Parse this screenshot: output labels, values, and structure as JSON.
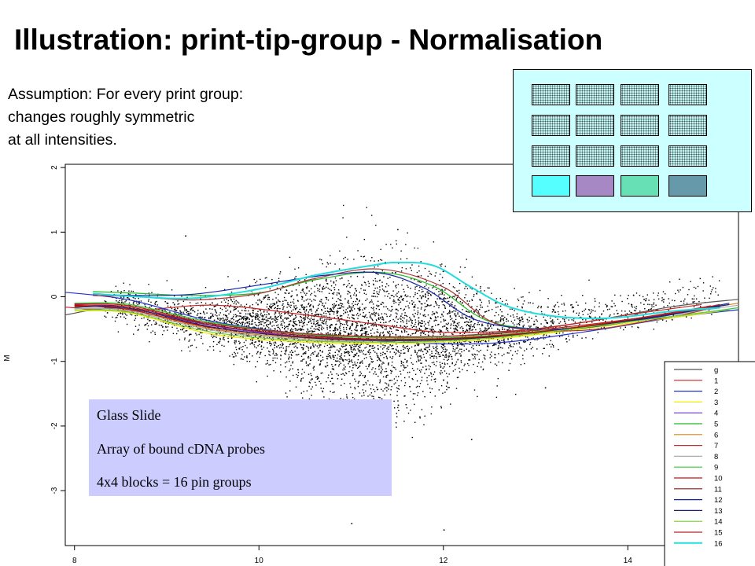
{
  "slide": {
    "title": "Illustration: print-tip-group - Normalisation",
    "assumption_lines": [
      "Assumption: For every print group:",
      "changes roughly symmetric",
      "at all intensities."
    ]
  },
  "glass_slide_box": {
    "lines": [
      "Glass Slide",
      "Array of bound cDNA probes",
      "4x4 blocks = 16 pin groups"
    ]
  },
  "array_diagram": {
    "rows": 4,
    "cols": 4,
    "dotted_fill": "#c6f2f2",
    "background": "#ccffff",
    "bottom_row_colors": [
      "#55ffff",
      "#a688c4",
      "#66e0b4",
      "#6699aa"
    ]
  },
  "chart_data": {
    "type": "scatter",
    "title": "",
    "xlabel": "",
    "ylabel": "M",
    "xlim": [
      7.9,
      15.2
    ],
    "ylim": [
      -3.85,
      2.05
    ],
    "x_ticks": [
      "8",
      "10",
      "12",
      "14"
    ],
    "y_ticks": [
      "2",
      "1",
      "0",
      "-1",
      "-2",
      "-3"
    ],
    "x_tick_values": [
      8,
      10,
      12,
      14
    ],
    "y_tick_values": [
      2,
      1,
      0,
      -1,
      -2,
      -3
    ],
    "grid": false,
    "legend_position": "bottom-right",
    "point_count": 5000,
    "point_color": "#000000",
    "series": [
      {
        "name": "g",
        "color": "#555555",
        "points": [
          [
            7.9,
            -0.28
          ],
          [
            8.5,
            -0.18
          ],
          [
            9.5,
            -0.42
          ],
          [
            10.5,
            -0.58
          ],
          [
            11.5,
            -0.63
          ],
          [
            12.5,
            -0.57
          ],
          [
            13.5,
            -0.4
          ],
          [
            14.5,
            -0.15
          ],
          [
            15.2,
            -0.04
          ]
        ]
      },
      {
        "name": "1",
        "color": "#cc2222",
        "points": [
          [
            7.9,
            -0.16
          ],
          [
            8.6,
            -0.22
          ],
          [
            9.5,
            -0.13
          ],
          [
            10.5,
            -0.28
          ],
          [
            11.3,
            -0.43
          ],
          [
            12.0,
            -0.55
          ],
          [
            13.0,
            -0.5
          ],
          [
            14.0,
            -0.28
          ],
          [
            14.8,
            -0.12
          ]
        ]
      },
      {
        "name": "2",
        "color": "#2233cc",
        "points": [
          [
            7.9,
            0.07
          ],
          [
            8.6,
            -0.05
          ],
          [
            9.5,
            -0.38
          ],
          [
            10.5,
            -0.58
          ],
          [
            11.5,
            -0.7
          ],
          [
            12.5,
            -0.72
          ],
          [
            13.5,
            -0.55
          ],
          [
            14.5,
            -0.32
          ],
          [
            15.2,
            -0.2
          ]
        ]
      },
      {
        "name": "3",
        "color": "#eeee00",
        "points": [
          [
            8.0,
            -0.22
          ],
          [
            8.6,
            -0.25
          ],
          [
            9.5,
            -0.58
          ],
          [
            10.5,
            -0.7
          ],
          [
            11.5,
            -0.72
          ],
          [
            12.5,
            -0.66
          ],
          [
            13.5,
            -0.5
          ],
          [
            14.5,
            -0.32
          ],
          [
            15.0,
            -0.22
          ]
        ]
      },
      {
        "name": "4",
        "color": "#7733cc",
        "points": [
          [
            8.0,
            -0.12
          ],
          [
            8.6,
            -0.18
          ],
          [
            9.5,
            -0.45
          ],
          [
            10.5,
            -0.62
          ],
          [
            11.5,
            -0.68
          ],
          [
            12.5,
            -0.63
          ],
          [
            13.5,
            -0.47
          ],
          [
            14.5,
            -0.27
          ],
          [
            15.0,
            -0.17
          ]
        ]
      },
      {
        "name": "5",
        "color": "#22bb22",
        "points": [
          [
            8.2,
            0.08
          ],
          [
            8.6,
            0.06
          ],
          [
            9.3,
            0.02
          ],
          [
            10.0,
            0.06
          ],
          [
            10.6,
            0.26
          ],
          [
            11.3,
            0.38
          ],
          [
            11.9,
            0.16
          ],
          [
            12.5,
            -0.38
          ],
          [
            13.3,
            -0.5
          ],
          [
            14.2,
            -0.34
          ],
          [
            14.8,
            -0.17
          ]
        ]
      },
      {
        "name": "6",
        "color": "#cc8822",
        "points": [
          [
            8.0,
            -0.15
          ],
          [
            8.6,
            -0.2
          ],
          [
            9.5,
            -0.5
          ],
          [
            10.5,
            -0.64
          ],
          [
            11.5,
            -0.68
          ],
          [
            12.5,
            -0.62
          ],
          [
            13.5,
            -0.46
          ],
          [
            14.5,
            -0.25
          ],
          [
            15.2,
            -0.1
          ]
        ]
      },
      {
        "name": "7",
        "color": "#aa3333",
        "points": [
          [
            8.2,
            0.02
          ],
          [
            8.7,
            0.0
          ],
          [
            9.3,
            -0.05
          ],
          [
            10.0,
            0.05
          ],
          [
            10.6,
            0.28
          ],
          [
            11.3,
            0.43
          ],
          [
            12.0,
            0.15
          ],
          [
            12.6,
            -0.43
          ],
          [
            13.5,
            -0.52
          ],
          [
            14.5,
            -0.3
          ],
          [
            15.0,
            -0.15
          ]
        ]
      },
      {
        "name": "8",
        "color": "#aaaaaa",
        "points": [
          [
            8.0,
            -0.18
          ],
          [
            8.6,
            -0.22
          ],
          [
            9.5,
            -0.52
          ],
          [
            10.5,
            -0.66
          ],
          [
            11.5,
            -0.7
          ],
          [
            12.5,
            -0.64
          ],
          [
            13.5,
            -0.48
          ],
          [
            14.5,
            -0.27
          ],
          [
            15.2,
            -0.13
          ]
        ]
      },
      {
        "name": "9",
        "color": "#33cc33",
        "points": [
          [
            8.0,
            -0.1
          ],
          [
            8.6,
            -0.12
          ],
          [
            9.5,
            -0.4
          ],
          [
            10.5,
            -0.58
          ],
          [
            11.5,
            -0.64
          ],
          [
            12.5,
            -0.6
          ],
          [
            13.5,
            -0.46
          ],
          [
            14.5,
            -0.3
          ],
          [
            15.2,
            -0.17
          ]
        ]
      },
      {
        "name": "10",
        "color": "#cc1111",
        "points": [
          [
            8.0,
            -0.14
          ],
          [
            8.6,
            -0.2
          ],
          [
            9.5,
            -0.48
          ],
          [
            10.5,
            -0.62
          ],
          [
            11.5,
            -0.66
          ],
          [
            12.5,
            -0.61
          ],
          [
            13.5,
            -0.46
          ],
          [
            14.5,
            -0.24
          ],
          [
            14.9,
            -0.14
          ]
        ]
      },
      {
        "name": "11",
        "color": "#991111",
        "points": [
          [
            8.0,
            -0.13
          ],
          [
            8.6,
            -0.16
          ],
          [
            9.5,
            -0.44
          ],
          [
            10.5,
            -0.6
          ],
          [
            11.5,
            -0.66
          ],
          [
            12.5,
            -0.62
          ],
          [
            13.5,
            -0.47
          ],
          [
            14.5,
            -0.26
          ],
          [
            15.0,
            -0.16
          ]
        ]
      },
      {
        "name": "12",
        "color": "#1122aa",
        "points": [
          [
            8.2,
            0.04
          ],
          [
            8.7,
            0.02
          ],
          [
            9.3,
            0.04
          ],
          [
            10.0,
            0.18
          ],
          [
            10.7,
            0.33
          ],
          [
            11.3,
            0.37
          ],
          [
            11.8,
            0.13
          ],
          [
            12.4,
            -0.38
          ],
          [
            13.3,
            -0.5
          ],
          [
            14.3,
            -0.32
          ],
          [
            15.1,
            -0.1
          ]
        ]
      },
      {
        "name": "13",
        "color": "#222266",
        "points": [
          [
            8.0,
            -0.16
          ],
          [
            8.6,
            -0.18
          ],
          [
            9.5,
            -0.47
          ],
          [
            10.5,
            -0.63
          ],
          [
            11.5,
            -0.68
          ],
          [
            12.5,
            -0.63
          ],
          [
            13.5,
            -0.48
          ],
          [
            14.5,
            -0.26
          ],
          [
            15.1,
            -0.12
          ]
        ]
      },
      {
        "name": "14",
        "color": "#77cc33",
        "points": [
          [
            8.0,
            -0.2
          ],
          [
            8.6,
            -0.24
          ],
          [
            9.5,
            -0.55
          ],
          [
            10.5,
            -0.68
          ],
          [
            11.5,
            -0.7
          ],
          [
            12.5,
            -0.64
          ],
          [
            13.5,
            -0.48
          ],
          [
            14.5,
            -0.3
          ],
          [
            15.1,
            -0.2
          ]
        ]
      },
      {
        "name": "15",
        "color": "#bb2222",
        "points": [
          [
            8.0,
            -0.11
          ],
          [
            8.6,
            -0.14
          ],
          [
            9.5,
            -0.42
          ],
          [
            10.5,
            -0.57
          ],
          [
            11.5,
            -0.62
          ],
          [
            12.5,
            -0.58
          ],
          [
            13.5,
            -0.44
          ],
          [
            14.5,
            -0.25
          ],
          [
            15.0,
            -0.12
          ]
        ]
      },
      {
        "name": "16",
        "color": "#22dddd",
        "points": [
          [
            8.2,
            0.05
          ],
          [
            8.7,
            0.0
          ],
          [
            9.3,
            -0.02
          ],
          [
            10.0,
            0.12
          ],
          [
            10.6,
            0.33
          ],
          [
            11.2,
            0.48
          ],
          [
            11.5,
            0.53
          ],
          [
            11.9,
            0.48
          ],
          [
            12.3,
            0.15
          ],
          [
            12.7,
            -0.15
          ],
          [
            13.2,
            -0.3
          ],
          [
            13.8,
            -0.33
          ],
          [
            14.5,
            -0.22
          ],
          [
            15.0,
            -0.17
          ]
        ]
      }
    ]
  }
}
